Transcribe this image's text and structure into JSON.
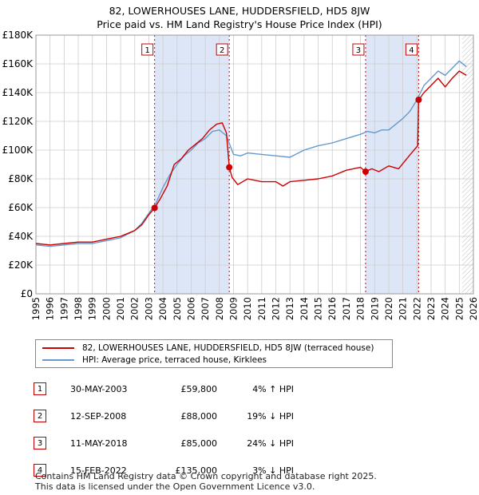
{
  "title": "82, LOWERHOUSES LANE, HUDDERSFIELD, HD5 8JW",
  "subtitle": "Price paid vs. HM Land Registry's House Price Index (HPI)",
  "colors": {
    "price": "#cc0000",
    "hpi": "#6699cc",
    "shade": "#dde6f7",
    "grid": "#cccccc",
    "marker": "#cc0000"
  },
  "chart_data": {
    "type": "line",
    "xlim": [
      1995,
      2026
    ],
    "ylim": [
      0,
      180000
    ],
    "yticks": [
      0,
      20000,
      40000,
      60000,
      80000,
      100000,
      120000,
      140000,
      160000,
      180000
    ],
    "ytick_labels": [
      "£0",
      "£20K",
      "£40K",
      "£60K",
      "£80K",
      "£100K",
      "£120K",
      "£140K",
      "£160K",
      "£180K"
    ],
    "xticks": [
      1995,
      1996,
      1997,
      1998,
      1999,
      2000,
      2001,
      2002,
      2003,
      2004,
      2005,
      2006,
      2007,
      2008,
      2009,
      2010,
      2011,
      2012,
      2013,
      2014,
      2015,
      2016,
      2017,
      2018,
      2019,
      2020,
      2021,
      2022,
      2023,
      2024,
      2025,
      2026
    ],
    "shaded_periods": [
      [
        2003.41,
        2008.7
      ],
      [
        2018.36,
        2022.12
      ]
    ],
    "hatched_from": 2025.2,
    "sales": [
      {
        "label": "1",
        "x": 2003.41,
        "y": 59800
      },
      {
        "label": "2",
        "x": 2008.7,
        "y": 88000
      },
      {
        "label": "3",
        "x": 2018.36,
        "y": 85000
      },
      {
        "label": "4",
        "x": 2022.12,
        "y": 135000
      }
    ],
    "series": [
      {
        "name": "82, LOWERHOUSES LANE, HUDDERSFIELD, HD5 8JW (terraced house)",
        "x": [
          1995,
          1996,
          1997,
          1998,
          1999,
          2000,
          2001,
          2002,
          2002.5,
          2003,
          2003.41,
          2003.8,
          2004.3,
          2004.8,
          2005.3,
          2005.8,
          2006.3,
          2006.8,
          2007.3,
          2007.8,
          2008.2,
          2008.5,
          2008.7,
          2008.9,
          2009.3,
          2010,
          2011,
          2012,
          2012.5,
          2013,
          2014,
          2015,
          2016,
          2017,
          2018,
          2018.36,
          2018.8,
          2019.3,
          2020,
          2020.7,
          2021.2,
          2021.7,
          2022.05,
          2022.12,
          2022.5,
          2023,
          2023.5,
          2024,
          2024.5,
          2025,
          2025.5
        ],
        "y": [
          35000,
          34000,
          35000,
          36000,
          36000,
          38000,
          40000,
          44000,
          48000,
          55000,
          59800,
          66000,
          75000,
          90000,
          94000,
          100000,
          104000,
          108000,
          114000,
          118000,
          119000,
          112000,
          88000,
          81000,
          76000,
          80000,
          78000,
          78000,
          75000,
          78000,
          79000,
          80000,
          82000,
          86000,
          88000,
          85000,
          87000,
          85000,
          89000,
          87000,
          93000,
          99000,
          103000,
          135000,
          140000,
          145000,
          150000,
          144000,
          150000,
          155000,
          152000
        ]
      },
      {
        "name": "HPI: Average price, terraced house, Kirklees",
        "x": [
          1995,
          1996,
          1997,
          1998,
          1999,
          2000,
          2001,
          2002,
          2002.5,
          2003,
          2003.5,
          2004,
          2004.5,
          2005,
          2005.5,
          2006,
          2006.5,
          2007,
          2007.5,
          2008,
          2008.5,
          2009,
          2009.5,
          2010,
          2011,
          2012,
          2013,
          2014,
          2015,
          2016,
          2017,
          2018,
          2018.5,
          2019,
          2019.5,
          2020,
          2020.5,
          2021,
          2021.5,
          2022,
          2022.5,
          2023,
          2023.5,
          2024,
          2024.5,
          2025,
          2025.5
        ],
        "y": [
          34000,
          33000,
          34000,
          35000,
          35000,
          37000,
          39000,
          44000,
          49000,
          56000,
          63000,
          74000,
          83000,
          90000,
          96000,
          100000,
          105000,
          108000,
          113000,
          114000,
          110000,
          97000,
          96000,
          98000,
          97000,
          96000,
          95000,
          100000,
          103000,
          105000,
          108000,
          111000,
          113000,
          112000,
          114000,
          114000,
          118000,
          122000,
          127000,
          135000,
          145000,
          150000,
          155000,
          152000,
          157000,
          162000,
          158000
        ]
      }
    ]
  },
  "legend": {
    "price_label": "82, LOWERHOUSES LANE, HUDDERSFIELD, HD5 8JW (terraced house)",
    "hpi_label": "HPI: Average price, terraced house, Kirklees"
  },
  "table": [
    {
      "num": "1",
      "date": "30-MAY-2003",
      "price": "£59,800",
      "hpi": "4% ↑ HPI"
    },
    {
      "num": "2",
      "date": "12-SEP-2008",
      "price": "£88,000",
      "hpi": "19% ↓ HPI"
    },
    {
      "num": "3",
      "date": "11-MAY-2018",
      "price": "£85,000",
      "hpi": "24% ↓ HPI"
    },
    {
      "num": "4",
      "date": "15-FEB-2022",
      "price": "£135,000",
      "hpi": "3% ↓ HPI"
    }
  ],
  "footer": {
    "line1": "Contains HM Land Registry data © Crown copyright and database right 2025.",
    "line2": "This data is licensed under the Open Government Licence v3.0."
  }
}
